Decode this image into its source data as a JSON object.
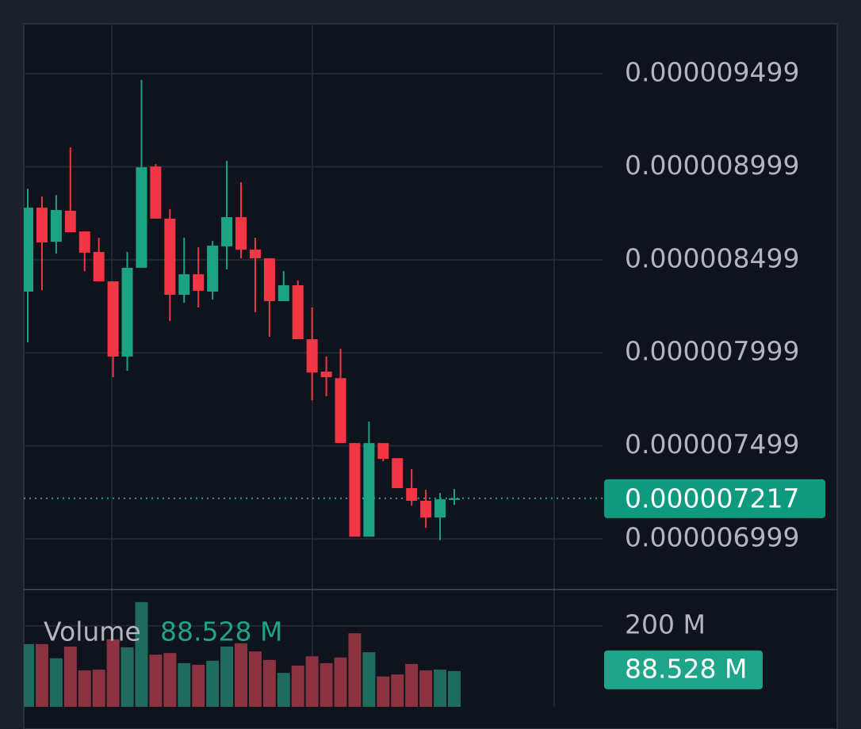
{
  "chart_data": {
    "type": "candlestick",
    "up_color": "#1ba383",
    "down_color": "#f23645",
    "open": [
      8.328e-06,
      8.779e-06,
      8.596e-06,
      8.762e-06,
      8.651e-06,
      8.541e-06,
      8.383e-06,
      7.979e-06,
      8.456e-06,
      9e-06,
      8.72e-06,
      8.311e-06,
      8.421e-06,
      8.328e-06,
      8.571e-06,
      8.728e-06,
      8.554e-06,
      8.507e-06,
      8.277e-06,
      8.362e-06,
      8.072e-06,
      7.898e-06,
      7.863e-06,
      7.514e-06,
      7.011e-06,
      7.514e-06,
      7.433e-06,
      7.272e-06,
      7.204e-06,
      7.114e-06,
      7.212e-06
    ],
    "high": [
      8.881e-06,
      8.839e-06,
      8.847e-06,
      9.103e-06,
      8.651e-06,
      8.617e-06,
      8.383e-06,
      8.541e-06,
      9.465e-06,
      9.013e-06,
      8.771e-06,
      8.617e-06,
      8.566e-06,
      8.6e-06,
      9.031e-06,
      8.916e-06,
      8.617e-06,
      8.507e-06,
      8.438e-06,
      8.387e-06,
      8.243e-06,
      7.979e-06,
      8.021e-06,
      7.514e-06,
      7.629e-06,
      7.514e-06,
      7.433e-06,
      7.374e-06,
      7.263e-06,
      7.246e-06,
      7.267e-06
    ],
    "low": [
      8.055e-06,
      8.336e-06,
      8.532e-06,
      8.647e-06,
      8.438e-06,
      8.383e-06,
      7.868e-06,
      7.902e-06,
      8.456e-06,
      8.72e-06,
      8.17e-06,
      8.268e-06,
      8.243e-06,
      8.285e-06,
      8.447e-06,
      8.507e-06,
      8.217e-06,
      8.085e-06,
      8.277e-06,
      8.072e-06,
      7.744e-06,
      7.766e-06,
      7.514e-06,
      7.011e-06,
      7.011e-06,
      7.416e-06,
      7.272e-06,
      7.178e-06,
      7.058e-06,
      6.993e-06,
      7.182e-06
    ],
    "close": [
      8.779e-06,
      8.592e-06,
      8.766e-06,
      8.647e-06,
      8.537e-06,
      8.383e-06,
      7.979e-06,
      8.456e-06,
      8.996e-06,
      8.72e-06,
      8.311e-06,
      8.421e-06,
      8.332e-06,
      8.575e-06,
      8.728e-06,
      8.554e-06,
      8.507e-06,
      8.277e-06,
      8.362e-06,
      8.072e-06,
      7.893e-06,
      7.868e-06,
      7.514e-06,
      7.011e-06,
      7.514e-06,
      7.429e-06,
      7.272e-06,
      7.204e-06,
      7.114e-06,
      7.212e-06,
      7.217e-06
    ],
    "ylim": [
      6.727e-06,
      9.767e-06
    ],
    "yticks": [
      6.999e-06,
      7.499e-06,
      7.999e-06,
      8.499e-06,
      8.999e-06,
      9.499e-06
    ],
    "grid": true,
    "volume": {
      "name": "Volume",
      "up_color": "#1f6b5d",
      "down_color": "#8c3240",
      "values": [
        155,
        155,
        120,
        149,
        90,
        92,
        167,
        147,
        259,
        129,
        133,
        108,
        104,
        114,
        149,
        157,
        137,
        116,
        84,
        102,
        125,
        108,
        122,
        182,
        135,
        75,
        80,
        106,
        90,
        92,
        88.528
      ],
      "last_label": "88.528 M",
      "ylim": [
        0,
        290
      ],
      "yticks": [
        {
          "value": 200,
          "label": "200 M"
        }
      ]
    }
  }
}
